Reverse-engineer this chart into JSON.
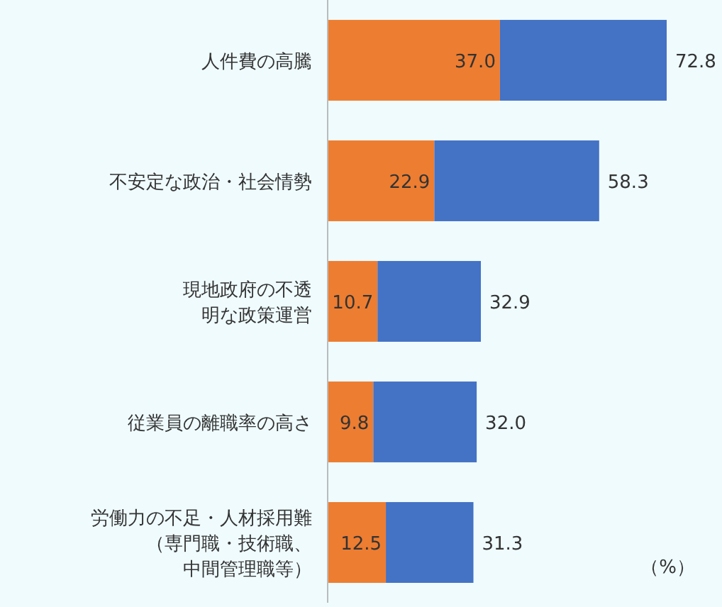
{
  "chart_data": {
    "type": "bar",
    "orientation": "horizontal",
    "stacked": true,
    "categories": [
      "人件費の高騰",
      "不安定な政治・社会情勢",
      "現地政府の不透明な政策運営",
      "従業員の離職率の高さ",
      "労働力の不足・人材採用難（専門職・技術職、中間管理職等）"
    ],
    "series": [
      {
        "color": "#ed7d31",
        "values": [
          37.0,
          22.9,
          10.7,
          9.8,
          12.5
        ],
        "value_labels": [
          "37.0",
          "22.9",
          "10.7",
          "9.8",
          "12.5"
        ]
      },
      {
        "color": "#4472c4",
        "values": [
          35.8,
          35.4,
          22.2,
          22.2,
          18.8
        ]
      }
    ],
    "totals": [
      "72.8",
      "58.3",
      "32.9",
      "32.0",
      "31.3"
    ],
    "annotations": [
      "（%）"
    ]
  }
}
